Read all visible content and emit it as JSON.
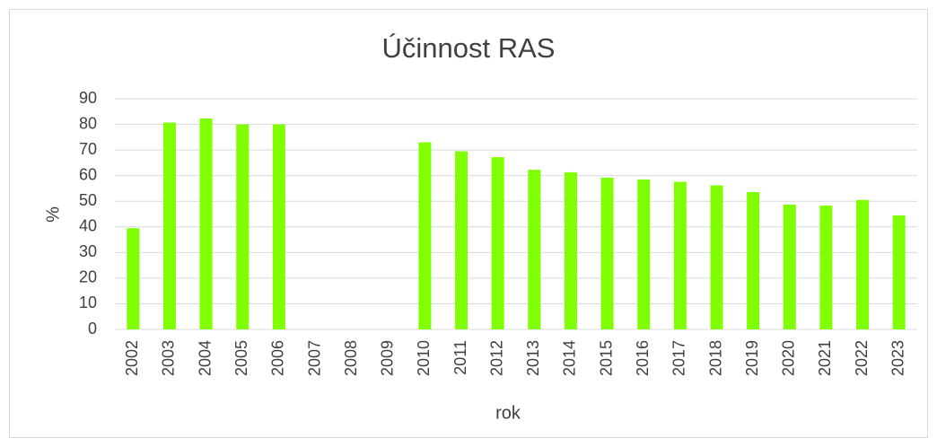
{
  "chart_data": {
    "type": "bar",
    "title": "Účinnost RAS",
    "x_label": "rok",
    "y_label": "%",
    "categories": [
      "2002",
      "2003",
      "2004",
      "2005",
      "2006",
      "2007",
      "2008",
      "2009",
      "2010",
      "2011",
      "2012",
      "2013",
      "2014",
      "2015",
      "2016",
      "2017",
      "2018",
      "2019",
      "2020",
      "2021",
      "2022",
      "2023"
    ],
    "values": [
      39.5,
      80.7,
      82.3,
      80,
      80,
      null,
      null,
      null,
      73,
      69.5,
      67.2,
      62.3,
      61.3,
      59.2,
      58.5,
      57.6,
      56.2,
      53.6,
      48.7,
      48.3,
      50.5,
      44.5
    ],
    "color": "#80ff00",
    "ylim": [
      0,
      90
    ],
    "yticks": [
      0,
      10,
      20,
      30,
      40,
      50,
      60,
      70,
      80,
      90
    ],
    "grid": true
  }
}
